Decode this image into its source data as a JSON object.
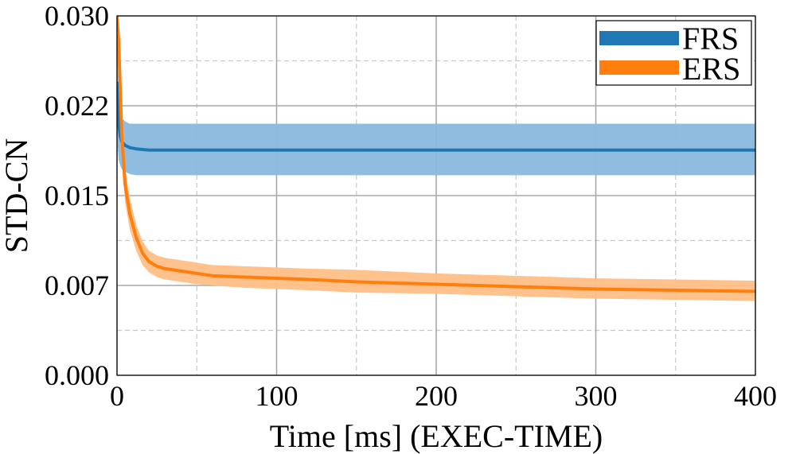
{
  "chart_data": {
    "type": "line",
    "xlabel": "Time [ms] (EXEC-TIME)",
    "ylabel": "STD-CN",
    "xlim": [
      0,
      400
    ],
    "ylim": [
      0,
      0.03
    ],
    "x_ticks": [
      0,
      100,
      200,
      300,
      400
    ],
    "x_tick_labels": [
      "0",
      "100",
      "200",
      "300",
      "400"
    ],
    "y_ticks": [
      0,
      0.0075,
      0.015,
      0.0225,
      0.03
    ],
    "y_tick_labels": [
      "0.000",
      "0.007",
      "0.015",
      "0.022",
      "0.030"
    ],
    "x_minor_ticks": [
      50,
      150,
      250,
      350
    ],
    "y_minor_ticks": [
      0.00375,
      0.01125,
      0.01875,
      0.02625
    ],
    "grid": true,
    "legend_position": "top-right",
    "series": [
      {
        "name": "FRS",
        "color": "#1f77b4",
        "band_color": "#8ab9dd",
        "x": [
          0,
          1,
          2,
          3,
          5,
          8,
          12,
          20,
          40,
          100,
          200,
          300,
          400
        ],
        "y": [
          0.0245,
          0.021,
          0.02,
          0.0195,
          0.0192,
          0.019,
          0.0189,
          0.0188,
          0.0188,
          0.0188,
          0.0188,
          0.0188,
          0.0188
        ],
        "y_lower": [
          0.02,
          0.018,
          0.0175,
          0.0172,
          0.017,
          0.0168,
          0.0167,
          0.0167,
          0.0167,
          0.0167,
          0.0167,
          0.0167,
          0.0167
        ],
        "y_upper": [
          0.029,
          0.0235,
          0.022,
          0.0215,
          0.0212,
          0.021,
          0.021,
          0.021,
          0.021,
          0.021,
          0.021,
          0.021,
          0.021
        ]
      },
      {
        "name": "ERS",
        "color": "#ff7f0e",
        "band_color": "#ffbf86",
        "x": [
          0,
          1,
          2,
          3,
          5,
          8,
          12,
          16,
          20,
          25,
          30,
          40,
          50,
          60,
          80,
          100,
          120,
          150,
          200,
          250,
          300,
          350,
          400
        ],
        "y": [
          0.03,
          0.028,
          0.024,
          0.02,
          0.016,
          0.0135,
          0.0115,
          0.0102,
          0.0095,
          0.0091,
          0.0089,
          0.0087,
          0.0085,
          0.0083,
          0.0082,
          0.0081,
          0.008,
          0.0078,
          0.0076,
          0.0074,
          0.0072,
          0.0071,
          0.007
        ],
        "y_lower": [
          0.027,
          0.025,
          0.0215,
          0.018,
          0.0145,
          0.0122,
          0.0104,
          0.0092,
          0.0086,
          0.0082,
          0.008,
          0.0078,
          0.0076,
          0.0075,
          0.0073,
          0.0072,
          0.0071,
          0.0069,
          0.0068,
          0.0066,
          0.0064,
          0.0063,
          0.0062
        ],
        "y_upper": [
          0.031,
          0.03,
          0.0265,
          0.022,
          0.0175,
          0.0148,
          0.0126,
          0.0112,
          0.0104,
          0.01,
          0.0098,
          0.0096,
          0.0094,
          0.0092,
          0.0091,
          0.009,
          0.0089,
          0.0088,
          0.0085,
          0.0083,
          0.0081,
          0.008,
          0.0079
        ]
      }
    ]
  }
}
